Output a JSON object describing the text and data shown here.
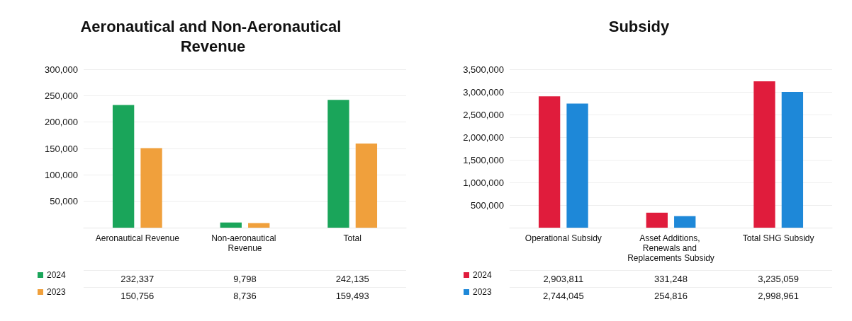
{
  "chart_data": [
    {
      "type": "bar",
      "title": "Aeronautical and Non-Aeronautical Revenue",
      "categories": [
        "Aeronautical Revenue",
        "Non-aeronautical Revenue",
        "Total"
      ],
      "series": [
        {
          "name": "2024",
          "color": "#1aa55a",
          "values": [
            232337,
            9798,
            242135
          ],
          "value_labels": [
            "232,337",
            "9,798",
            "242,135"
          ]
        },
        {
          "name": "2023",
          "color": "#f0a03c",
          "values": [
            150756,
            8736,
            159493
          ],
          "value_labels": [
            "150,756",
            "8,736",
            "159,493"
          ]
        }
      ],
      "ylim": [
        0,
        300000
      ],
      "yticks": [
        {
          "value": 50000,
          "label": "50,000"
        },
        {
          "value": 100000,
          "label": "100,000"
        },
        {
          "value": 150000,
          "label": "150,000"
        },
        {
          "value": 200000,
          "label": "200,000"
        },
        {
          "value": 250000,
          "label": "250,000"
        },
        {
          "value": 300000,
          "label": "300,000"
        }
      ],
      "grid": "y",
      "legend": "bottom"
    },
    {
      "type": "bar",
      "title": "Subsidy",
      "categories": [
        "Operational Subsidy",
        "Asset Additions, Renewals and Replacements Subsidy",
        "Total SHG Subsidy"
      ],
      "series": [
        {
          "name": "2024",
          "color": "#e01c3c",
          "values": [
            2903811,
            331248,
            3235059
          ],
          "value_labels": [
            "2,903,811",
            "331,248",
            "3,235,059"
          ]
        },
        {
          "name": "2023",
          "color": "#1e88d8",
          "values": [
            2744045,
            254816,
            2998961
          ],
          "value_labels": [
            "2,744,045",
            "254,816",
            "2,998,961"
          ]
        }
      ],
      "ylim": [
        0,
        3500000
      ],
      "yticks": [
        {
          "value": 500000,
          "label": "500,000"
        },
        {
          "value": 1000000,
          "label": "1,000,000"
        },
        {
          "value": 1500000,
          "label": "1,500,000"
        },
        {
          "value": 2000000,
          "label": "2,000,000"
        },
        {
          "value": 2500000,
          "label": "2,500,000"
        },
        {
          "value": 3000000,
          "label": "3,000,000"
        },
        {
          "value": 3500000,
          "label": "3,500,000"
        }
      ],
      "grid": "y",
      "legend": "bottom"
    }
  ]
}
